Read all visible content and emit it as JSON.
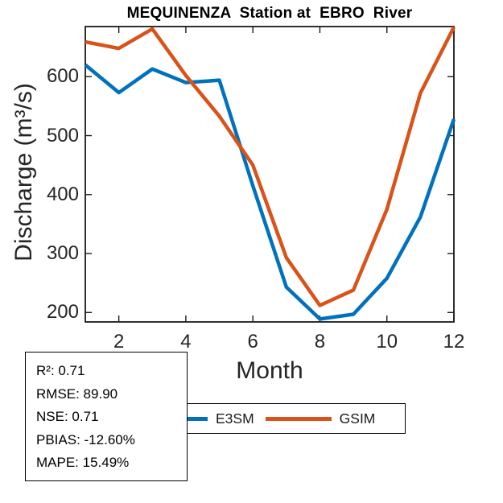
{
  "title": "MEQUINENZA  Station at  EBRO  River",
  "chart_data": {
    "type": "line",
    "title": "MEQUINENZA  Station at  EBRO  River",
    "xlabel": "Month",
    "ylabel": "Discharge (m³/s)",
    "x": [
      1,
      2,
      3,
      4,
      5,
      6,
      7,
      8,
      9,
      10,
      11,
      12
    ],
    "series": [
      {
        "name": "E3SM",
        "color": "#0072BD",
        "values": [
          620,
          573,
          613,
          590,
          594,
          415,
          243,
          189,
          197,
          258,
          362,
          528
        ]
      },
      {
        "name": "GSIM",
        "color": "#D95319",
        "values": [
          659,
          648,
          681,
          602,
          533,
          450,
          293,
          212,
          238,
          375,
          572,
          684
        ]
      }
    ],
    "xlim": [
      1,
      12
    ],
    "ylim": [
      184,
      685
    ],
    "xticks": [
      2,
      4,
      6,
      8,
      10,
      12
    ],
    "yticks": [
      200,
      300,
      400,
      500,
      600
    ],
    "grid": false,
    "legend_position": "below-axis-horizontal"
  },
  "stats_box": {
    "lines": [
      "R²: 0.71",
      "RMSE: 89.90",
      "NSE: 0.71",
      "PBIAS: -12.60%",
      "MAPE: 15.49%"
    ]
  },
  "legend": {
    "items": [
      {
        "label": "E3SM",
        "color": "#0072BD"
      },
      {
        "label": "GSIM",
        "color": "#D95319"
      }
    ]
  },
  "axis_style": {
    "box_color": "#1a1a1a",
    "tick_label_color": "#252525",
    "line_width": 4.5
  }
}
